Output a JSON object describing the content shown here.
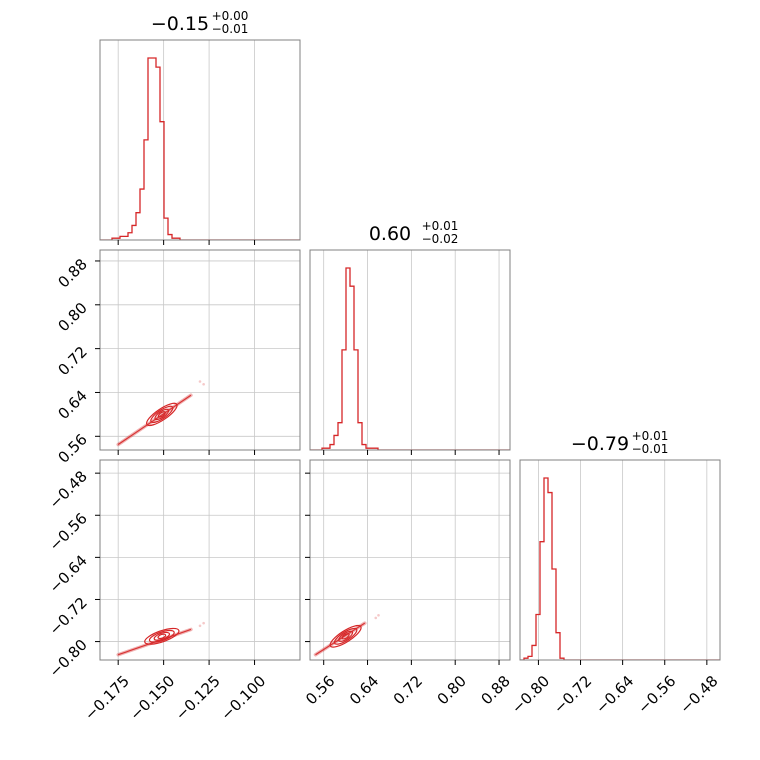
{
  "chart_data": {
    "type": "corner",
    "line_color": "#d62728",
    "grid": true,
    "parameters": [
      {
        "title_value": "−0.15",
        "title_plus": "+0.00",
        "title_minus": "−0.01",
        "range": [
          -0.185,
          -0.075
        ],
        "ticks": [
          -0.175,
          -0.15,
          -0.125,
          -0.1
        ],
        "tick_labels": [
          "−0.175",
          "−0.150",
          "−0.125",
          "−0.100"
        ],
        "histogram": {
          "bin_start": -0.185,
          "bin_width": 0.0022,
          "counts": [
            0,
            0,
            0,
            1,
            1,
            2,
            2,
            4,
            8,
            15,
            28,
            55,
            100,
            100,
            95,
            65,
            12,
            3,
            1,
            1,
            0,
            0,
            0,
            0,
            0,
            0,
            0,
            0,
            0,
            0,
            0,
            0,
            0,
            0,
            0,
            0,
            0,
            0,
            0,
            0,
            0,
            0,
            0,
            0,
            0,
            0,
            0,
            0,
            0,
            0
          ]
        }
      },
      {
        "title_value": "0.60",
        "title_plus": "+0.01",
        "title_minus": "−0.02",
        "range": [
          0.535,
          0.9
        ],
        "ticks": [
          0.56,
          0.64,
          0.72,
          0.8,
          0.88
        ],
        "tick_labels": [
          "0.56",
          "0.64",
          "0.72",
          "0.80",
          "0.88"
        ],
        "histogram": {
          "bin_start": 0.535,
          "bin_width": 0.0073,
          "counts": [
            0,
            0,
            0,
            1,
            1,
            3,
            8,
            15,
            55,
            100,
            90,
            55,
            15,
            3,
            1,
            1,
            1,
            0,
            0,
            0,
            0,
            0,
            0,
            0,
            0,
            0,
            0,
            0,
            0,
            0,
            0,
            0,
            0,
            0,
            0,
            0,
            0,
            0,
            0,
            0,
            0,
            0,
            0,
            0,
            0,
            0,
            0,
            0,
            0,
            0
          ]
        }
      },
      {
        "title_value": "−0.79",
        "title_plus": "+0.01",
        "title_minus": "−0.01",
        "range": [
          -0.835,
          -0.455
        ],
        "ticks": [
          -0.8,
          -0.72,
          -0.64,
          -0.56,
          -0.48
        ],
        "tick_labels": [
          "−0.80",
          "−0.72",
          "−0.64",
          "−0.56",
          "−0.48"
        ],
        "histogram": {
          "bin_start": -0.835,
          "bin_width": 0.0076,
          "counts": [
            0,
            1,
            2,
            8,
            25,
            65,
            100,
            92,
            50,
            15,
            1,
            0,
            0,
            0,
            0,
            0,
            0,
            0,
            0,
            0,
            0,
            0,
            0,
            0,
            0,
            0,
            0,
            0,
            0,
            0,
            0,
            0,
            0,
            0,
            0,
            0,
            0,
            0,
            0,
            0,
            0,
            0,
            0,
            0,
            0,
            0,
            0,
            0,
            0,
            0
          ]
        }
      }
    ],
    "pairs": [
      {
        "x_param": 0,
        "y_param": 1,
        "center": [
          -0.151,
          0.6
        ],
        "trend": [
          [
            -0.175,
            0.545
          ],
          [
            -0.135,
            0.635
          ]
        ],
        "outliers": [
          [
            -0.13,
            0.66
          ],
          [
            -0.128,
            0.655
          ]
        ]
      },
      {
        "x_param": 0,
        "y_param": 2,
        "center": [
          -0.151,
          -0.79
        ],
        "trend": [
          [
            -0.175,
            -0.825
          ],
          [
            -0.135,
            -0.777
          ]
        ],
        "outliers": [
          [
            -0.128,
            -0.765
          ],
          [
            -0.13,
            -0.77
          ]
        ]
      },
      {
        "x_param": 1,
        "y_param": 2,
        "center": [
          0.6,
          -0.79
        ],
        "trend": [
          [
            0.545,
            -0.825
          ],
          [
            0.635,
            -0.765
          ]
        ],
        "outliers": [
          [
            0.655,
            -0.755
          ],
          [
            0.66,
            -0.75
          ]
        ]
      }
    ]
  }
}
